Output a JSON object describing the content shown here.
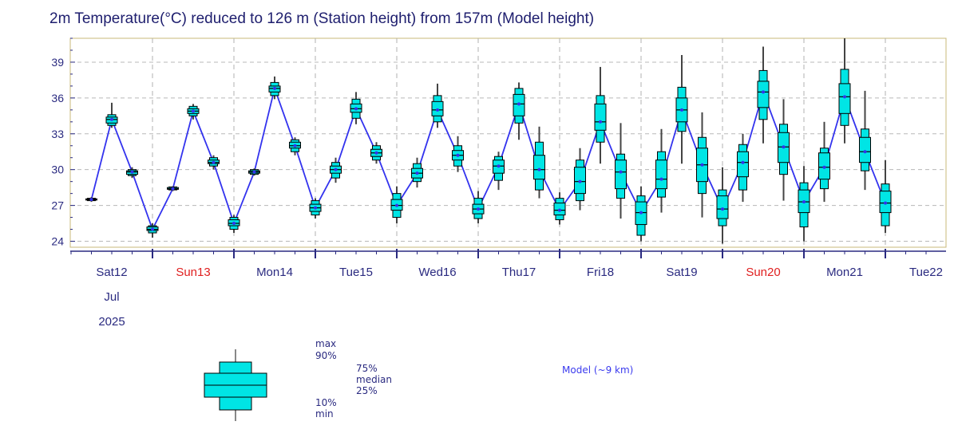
{
  "title": "2m Temperature(°C) reduced to 126 m (Station height) from 157m (Model height)",
  "chart_data": {
    "type": "boxplot-meteogram",
    "ylim": [
      23.5,
      41
    ],
    "yticks": [
      24,
      27,
      30,
      33,
      36,
      39
    ],
    "x_days": [
      {
        "label": "Sat12",
        "color": "#2a2a80"
      },
      {
        "label": "Sun13",
        "color": "#e02020"
      },
      {
        "label": "Mon14",
        "color": "#2a2a80"
      },
      {
        "label": "Tue15",
        "color": "#2a2a80"
      },
      {
        "label": "Wed16",
        "color": "#2a2a80"
      },
      {
        "label": "Thu17",
        "color": "#2a2a80"
      },
      {
        "label": "Fri18",
        "color": "#2a2a80"
      },
      {
        "label": "Sat19",
        "color": "#2a2a80"
      },
      {
        "label": "Sun20",
        "color": "#e02020"
      },
      {
        "label": "Mon21",
        "color": "#2a2a80"
      },
      {
        "label": "Tue22",
        "color": "#2a2a80"
      }
    ],
    "x_sublabels": [
      "Jul",
      "2025"
    ],
    "timestep_hours": 6,
    "start_offset_hours": -6,
    "series": [
      {
        "name": "Model (~9 km)",
        "box_color": "#00e5e5",
        "line_color": "#3333ee",
        "points": [
          {
            "min": 27.3,
            "p10": 27.4,
            "p25": 27.45,
            "median": 27.5,
            "p75": 27.55,
            "p90": 27.6,
            "max": 27.7
          },
          {
            "min": 33.5,
            "p10": 33.7,
            "p25": 33.9,
            "median": 34.2,
            "p75": 34.4,
            "p90": 34.6,
            "max": 35.6
          },
          {
            "min": 29.3,
            "p10": 29.5,
            "p25": 29.6,
            "median": 29.8,
            "p75": 29.9,
            "p90": 30.0,
            "max": 30.2
          },
          {
            "min": 24.3,
            "p10": 24.7,
            "p25": 24.9,
            "median": 25.0,
            "p75": 25.2,
            "p90": 25.3,
            "max": 25.5
          },
          {
            "min": 28.2,
            "p10": 28.3,
            "p25": 28.35,
            "median": 28.4,
            "p75": 28.5,
            "p90": 28.55,
            "max": 28.6
          },
          {
            "min": 34.2,
            "p10": 34.5,
            "p25": 34.7,
            "median": 34.9,
            "p75": 35.1,
            "p90": 35.3,
            "max": 35.5
          },
          {
            "min": 30.0,
            "p10": 30.3,
            "p25": 30.5,
            "median": 30.6,
            "p75": 30.8,
            "p90": 31.0,
            "max": 31.2
          },
          {
            "min": 24.7,
            "p10": 25.0,
            "p25": 25.3,
            "median": 25.5,
            "p75": 25.8,
            "p90": 26.0,
            "max": 26.2
          },
          {
            "min": 29.5,
            "p10": 29.6,
            "p25": 29.7,
            "median": 29.8,
            "p75": 29.9,
            "p90": 30.0,
            "max": 30.1
          },
          {
            "min": 35.9,
            "p10": 36.2,
            "p25": 36.5,
            "median": 36.8,
            "p75": 37.0,
            "p90": 37.3,
            "max": 37.8
          },
          {
            "min": 31.2,
            "p10": 31.5,
            "p25": 31.8,
            "median": 32.0,
            "p75": 32.3,
            "p90": 32.5,
            "max": 32.7
          },
          {
            "min": 25.9,
            "p10": 26.2,
            "p25": 26.5,
            "median": 26.8,
            "p75": 27.1,
            "p90": 27.4,
            "max": 27.6
          },
          {
            "min": 28.9,
            "p10": 29.3,
            "p25": 29.7,
            "median": 30.0,
            "p75": 30.3,
            "p90": 30.6,
            "max": 31.0
          },
          {
            "min": 33.8,
            "p10": 34.3,
            "p25": 34.8,
            "median": 35.1,
            "p75": 35.5,
            "p90": 35.9,
            "max": 36.5
          },
          {
            "min": 30.5,
            "p10": 30.8,
            "p25": 31.1,
            "median": 31.4,
            "p75": 31.7,
            "p90": 32.0,
            "max": 32.3
          },
          {
            "min": 25.5,
            "p10": 26.0,
            "p25": 26.6,
            "median": 27.0,
            "p75": 27.5,
            "p90": 28.0,
            "max": 28.6
          },
          {
            "min": 28.5,
            "p10": 29.0,
            "p25": 29.3,
            "median": 29.7,
            "p75": 30.1,
            "p90": 30.5,
            "max": 31.0
          },
          {
            "min": 33.5,
            "p10": 34.0,
            "p25": 34.5,
            "median": 35.0,
            "p75": 35.7,
            "p90": 36.2,
            "max": 37.2
          },
          {
            "min": 29.8,
            "p10": 30.3,
            "p25": 30.8,
            "median": 31.2,
            "p75": 31.6,
            "p90": 32.0,
            "max": 32.8
          },
          {
            "min": 25.5,
            "p10": 25.9,
            "p25": 26.3,
            "median": 26.7,
            "p75": 27.1,
            "p90": 27.6,
            "max": 28.2
          },
          {
            "min": 28.3,
            "p10": 29.1,
            "p25": 29.7,
            "median": 30.3,
            "p75": 30.8,
            "p90": 31.1,
            "max": 31.5
          },
          {
            "min": 32.5,
            "p10": 33.9,
            "p25": 34.5,
            "median": 35.5,
            "p75": 36.3,
            "p90": 36.8,
            "max": 37.3
          },
          {
            "min": 27.6,
            "p10": 28.3,
            "p25": 29.2,
            "median": 30.0,
            "p75": 31.2,
            "p90": 32.3,
            "max": 33.6
          },
          {
            "min": 25.4,
            "p10": 25.8,
            "p25": 26.2,
            "median": 26.6,
            "p75": 27.2,
            "p90": 27.6,
            "max": 28.1
          },
          {
            "min": 26.6,
            "p10": 27.4,
            "p25": 28.0,
            "median": 29.0,
            "p75": 30.2,
            "p90": 30.8,
            "max": 31.8
          },
          {
            "min": 30.5,
            "p10": 32.3,
            "p25": 33.3,
            "median": 34.0,
            "p75": 35.5,
            "p90": 36.2,
            "max": 38.6
          },
          {
            "min": 25.9,
            "p10": 27.6,
            "p25": 28.4,
            "median": 29.8,
            "p75": 30.8,
            "p90": 31.3,
            "max": 33.9
          },
          {
            "min": 24.0,
            "p10": 24.5,
            "p25": 25.4,
            "median": 26.4,
            "p75": 27.3,
            "p90": 27.8,
            "max": 28.6
          },
          {
            "min": 26.4,
            "p10": 27.7,
            "p25": 28.4,
            "median": 29.2,
            "p75": 30.8,
            "p90": 31.5,
            "max": 33.4
          },
          {
            "min": 30.5,
            "p10": 33.2,
            "p25": 34.0,
            "median": 35.0,
            "p75": 36.0,
            "p90": 36.9,
            "max": 39.6
          },
          {
            "min": 26.0,
            "p10": 28.0,
            "p25": 29.0,
            "median": 30.4,
            "p75": 31.8,
            "p90": 32.7,
            "max": 34.8
          },
          {
            "min": 23.8,
            "p10": 25.3,
            "p25": 25.9,
            "median": 26.7,
            "p75": 27.8,
            "p90": 28.3,
            "max": 30.2
          },
          {
            "min": 27.3,
            "p10": 28.3,
            "p25": 29.4,
            "median": 30.6,
            "p75": 31.5,
            "p90": 32.1,
            "max": 33.0
          },
          {
            "min": 32.2,
            "p10": 34.2,
            "p25": 35.2,
            "median": 36.5,
            "p75": 37.4,
            "p90": 38.3,
            "max": 40.3
          },
          {
            "min": 27.4,
            "p10": 29.6,
            "p25": 30.6,
            "median": 31.9,
            "p75": 33.1,
            "p90": 33.8,
            "max": 35.9
          },
          {
            "min": 24.0,
            "p10": 25.2,
            "p25": 26.4,
            "median": 27.3,
            "p75": 28.3,
            "p90": 28.9,
            "max": 30.3
          },
          {
            "min": 27.3,
            "p10": 28.4,
            "p25": 29.2,
            "median": 30.2,
            "p75": 31.4,
            "p90": 31.8,
            "max": 34.0
          },
          {
            "min": 32.2,
            "p10": 33.7,
            "p25": 34.7,
            "median": 36.1,
            "p75": 37.2,
            "p90": 38.4,
            "max": 41.0
          },
          {
            "min": 28.3,
            "p10": 29.9,
            "p25": 30.6,
            "median": 31.5,
            "p75": 32.7,
            "p90": 33.4,
            "max": 36.6
          },
          {
            "min": 24.7,
            "p10": 25.3,
            "p25": 26.4,
            "median": 27.2,
            "p75": 28.2,
            "p90": 28.8,
            "max": 30.8
          }
        ]
      }
    ],
    "legend": {
      "labels": {
        "max": "max",
        "p90": "90%",
        "p75": "75%",
        "median": "median",
        "p25": "25%",
        "p10": "10%",
        "min": "min"
      },
      "series_label": "Model (~9 km)"
    },
    "grid": true
  }
}
